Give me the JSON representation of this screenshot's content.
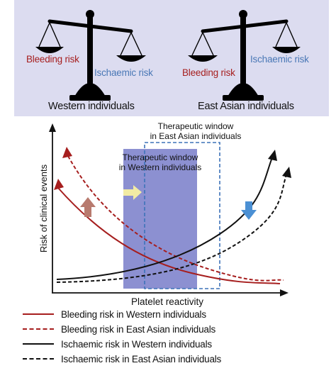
{
  "top_panel": {
    "western": {
      "bleeding_label": "Bleeding risk",
      "ischaemic_label": "Ischaemic risk",
      "caption": "Western individuals"
    },
    "east_asian": {
      "bleeding_label": "Bleeding risk",
      "ischaemic_label": "Ischaemic risk",
      "caption": "East Asian individuals"
    }
  },
  "graph": {
    "ylabel": "Risk of clinical events",
    "xlabel": "Platelet reactivity",
    "window_western": [
      "Therapeutic window",
      "in Western individuals"
    ],
    "window_east_asian": [
      "Therapeutic window",
      "in East Asian individuals"
    ]
  },
  "legend": [
    {
      "label": "Bleeding risk in Western individuals",
      "color": "#a61e1e",
      "style": "solid"
    },
    {
      "label": "Bleeding risk in East Asian individuals",
      "color": "#a61e1e",
      "style": "dashed"
    },
    {
      "label": "Ischaemic risk in Western individuals",
      "color": "#111111",
      "style": "solid"
    },
    {
      "label": "Ischaemic risk in East Asian individuals",
      "color": "#111111",
      "style": "dashed"
    }
  ],
  "colors": {
    "bleeding": "#a61e1e",
    "ischaemic": "#111111",
    "western_window": "#7f84cc",
    "east_asian_window_border": "#3d72b8",
    "up_arrow": "#b87a6e",
    "right_arrow": "#f2eba4",
    "down_arrow": "#4b90d4"
  }
}
